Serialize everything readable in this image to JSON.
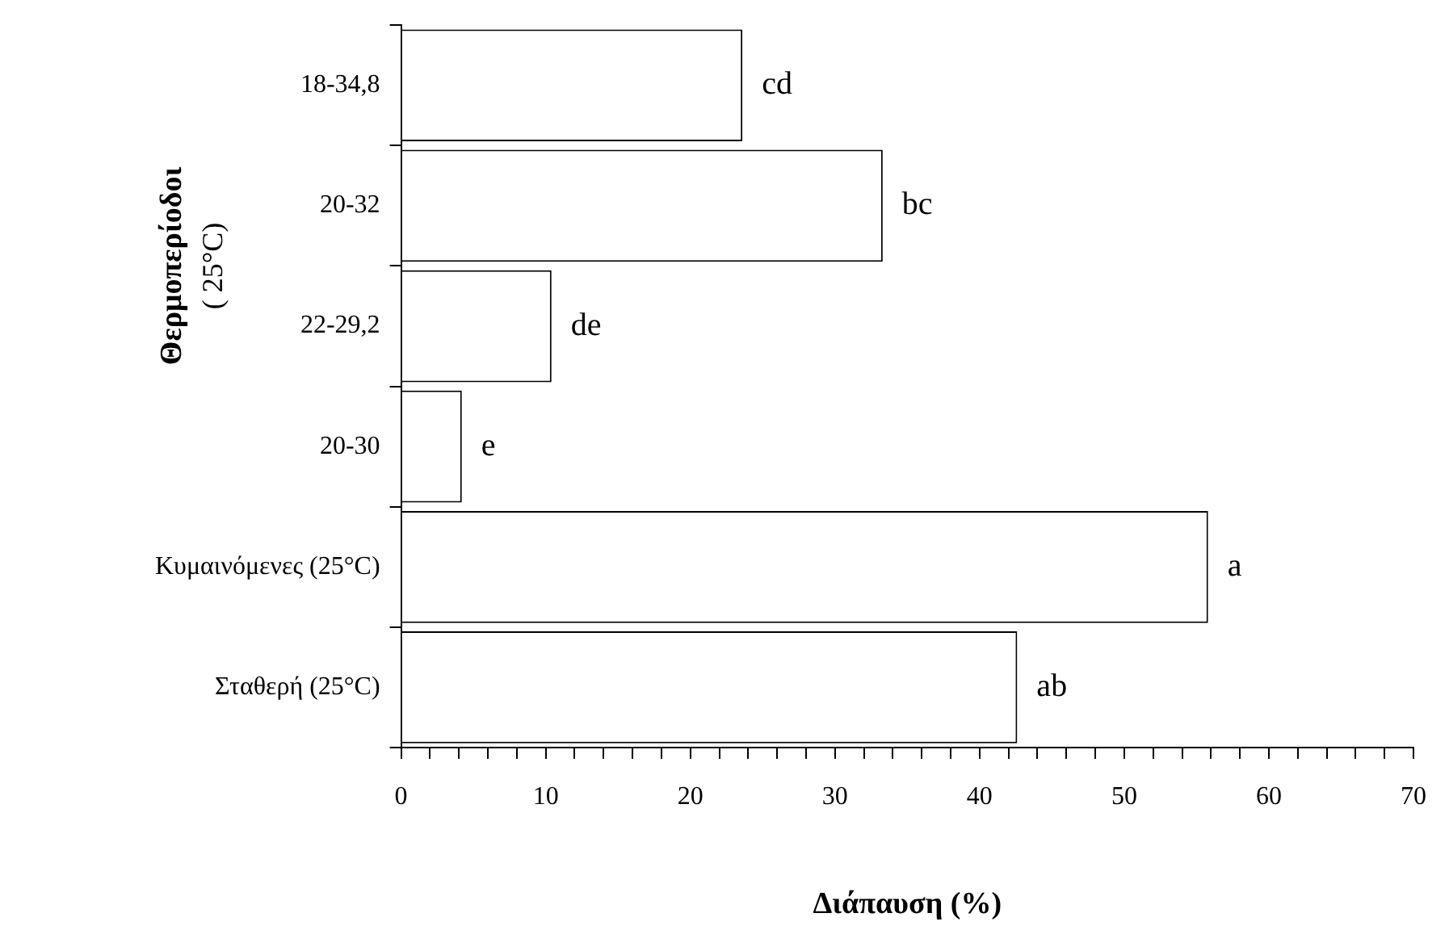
{
  "chart_data": {
    "type": "bar",
    "orientation": "horizontal",
    "ylabel": "Θερμοπερίοδοι\n( 25°C)",
    "xlabel": "Διάπαυση (%)",
    "categories": [
      "18-34,8",
      "20-32",
      "22-29,2",
      "20-30",
      "Κυμαινόμενες (25°C)",
      "Σταθερή (25°C)"
    ],
    "values": [
      23.6,
      33.3,
      10.4,
      4.2,
      55.8,
      42.6
    ],
    "value_labels": [
      "cd",
      "bc",
      "de",
      "e",
      "a",
      "ab"
    ],
    "color": "#ffffff",
    "xlim": [
      0,
      70
    ],
    "xticks": [
      0,
      {
        "value": 2,
        "label": null
      },
      {
        "value": 4,
        "label": null
      },
      {
        "value": 6,
        "label": null
      },
      {
        "value": 8,
        "label": null
      },
      10,
      {
        "value": 12,
        "label": null
      },
      {
        "value": 14,
        "label": null
      },
      {
        "value": 16,
        "label": null
      },
      {
        "value": 18,
        "label": null
      },
      20,
      {
        "value": 22,
        "label": null
      },
      {
        "value": 24,
        "label": null
      },
      {
        "value": 26,
        "label": null
      },
      {
        "value": 28,
        "label": null
      },
      30,
      {
        "value": 32,
        "label": null
      },
      {
        "value": 34,
        "label": null
      },
      {
        "value": 36,
        "label": null
      },
      {
        "value": 38,
        "label": null
      },
      40,
      {
        "value": 42,
        "label": null
      },
      {
        "value": 44,
        "label": null
      },
      {
        "value": 46,
        "label": null
      },
      {
        "value": 48,
        "label": null
      },
      50,
      {
        "value": 52,
        "label": null
      },
      {
        "value": 54,
        "label": null
      },
      {
        "value": 56,
        "label": null
      },
      {
        "value": 58,
        "label": null
      },
      60,
      {
        "value": 62,
        "label": null
      },
      {
        "value": 64,
        "label": null
      },
      {
        "value": 66,
        "label": null
      },
      {
        "value": 68,
        "label": null
      },
      70
    ],
    "grid": false,
    "legend": false
  }
}
